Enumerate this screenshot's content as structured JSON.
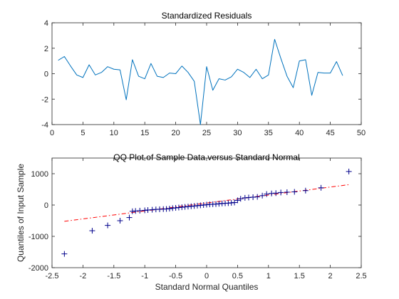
{
  "chart_data": [
    {
      "type": "line",
      "title": "Standardized Residuals",
      "xlabel": "",
      "ylabel": "",
      "xlim": [
        0,
        50
      ],
      "ylim": [
        -4,
        4
      ],
      "xticks": [
        0,
        5,
        10,
        15,
        20,
        25,
        30,
        35,
        40,
        45,
        50
      ],
      "yticks": [
        -4,
        -2,
        0,
        2,
        4
      ],
      "grid": false,
      "series": [
        {
          "color": "#0072BD",
          "x": [
            1,
            2,
            3,
            4,
            5,
            6,
            7,
            8,
            9,
            10,
            11,
            12,
            13,
            14,
            15,
            16,
            17,
            18,
            19,
            20,
            21,
            22,
            23,
            24,
            25,
            26,
            27,
            28,
            29,
            30,
            31,
            32,
            33,
            34,
            35,
            36,
            37,
            38,
            39,
            40,
            41,
            42,
            43,
            44,
            45,
            46,
            47
          ],
          "y": [
            1.05,
            1.35,
            0.6,
            -0.1,
            -0.3,
            0.7,
            -0.1,
            0.1,
            0.55,
            0.35,
            0.3,
            -2.05,
            1.1,
            -0.2,
            -0.4,
            0.8,
            -0.2,
            -0.3,
            0.05,
            0.0,
            0.6,
            0.1,
            -0.6,
            -4.0,
            0.55,
            -1.3,
            -0.4,
            -0.5,
            -0.25,
            0.35,
            0.1,
            -0.3,
            0.35,
            -0.4,
            -0.1,
            2.7,
            1.2,
            -0.2,
            -1.1,
            1.0,
            1.1,
            -1.7,
            0.1,
            0.05,
            0.05,
            0.95,
            -0.15
          ]
        }
      ]
    },
    {
      "type": "scatter",
      "title": "QQ Plot of Sample Data versus Standard Normal",
      "xlabel": "Standard Normal Quantiles",
      "ylabel": "Quantiles of Input Sample",
      "xlim": [
        -2.5,
        2.5
      ],
      "ylim": [
        -2000,
        1500
      ],
      "xticks": [
        -2.5,
        -2,
        -1.5,
        -1,
        -0.5,
        0,
        0.5,
        1,
        1.5,
        2,
        2.5
      ],
      "yticks": [
        -2000,
        -1000,
        0,
        1000
      ],
      "grid": false,
      "marker": "+",
      "marker_color": "#00008B",
      "reference_line": {
        "color": "#FF0000",
        "style": "dash-dot",
        "x": [
          -2.3,
          2.3
        ],
        "y": [
          -520,
          650
        ]
      },
      "series": [
        {
          "x": [
            -2.3,
            -1.85,
            -1.6,
            -1.4,
            -1.25,
            -1.2,
            -1.15,
            -1.08,
            -1.0,
            -0.95,
            -0.88,
            -0.82,
            -0.76,
            -0.7,
            -0.65,
            -0.6,
            -0.55,
            -0.5,
            -0.45,
            -0.4,
            -0.35,
            -0.3,
            -0.25,
            -0.2,
            -0.15,
            -0.1,
            -0.05,
            0.0,
            0.05,
            0.1,
            0.15,
            0.2,
            0.25,
            0.3,
            0.35,
            0.4,
            0.45,
            0.5,
            0.55,
            0.62,
            0.68,
            0.75,
            0.82,
            0.9,
            0.97,
            1.05,
            1.12,
            1.2,
            1.3,
            1.42,
            1.6,
            1.85,
            2.3
          ],
          "y": [
            -1560,
            -820,
            -650,
            -500,
            -400,
            -200,
            -190,
            -180,
            -170,
            -160,
            -150,
            -140,
            -135,
            -130,
            -125,
            -115,
            -100,
            -90,
            -80,
            -70,
            -60,
            -50,
            -40,
            -30,
            -20,
            -10,
            0,
            10,
            20,
            25,
            30,
            40,
            50,
            55,
            60,
            70,
            80,
            150,
            200,
            230,
            240,
            250,
            260,
            300,
            350,
            370,
            380,
            400,
            410,
            420,
            460,
            550,
            1070
          ]
        }
      ]
    }
  ]
}
